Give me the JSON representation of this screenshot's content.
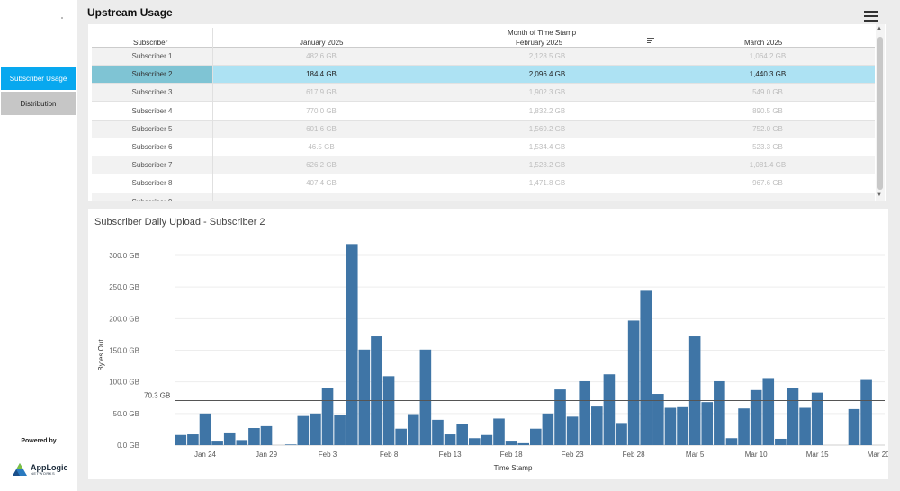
{
  "header": {
    "title": "Upstream Usage"
  },
  "sidebar": {
    "items": [
      {
        "label": "Subscriber Usage",
        "active": true
      },
      {
        "label": "Distribution",
        "active": false
      }
    ],
    "powered_by": "Powered by",
    "logo_name": "AppLogic",
    "logo_sub": "NETWORKS"
  },
  "table": {
    "group_header": "Month of Time Stamp",
    "columns": [
      "Subscriber",
      "January 2025",
      "February 2025",
      "March 2025"
    ],
    "selected_row": 1,
    "rows": [
      {
        "name": "Subscriber 1",
        "jan": "482.6 GB",
        "feb": "2,128.5 GB",
        "mar": "1,064.2 GB"
      },
      {
        "name": "Subscriber 2",
        "jan": "184.4 GB",
        "feb": "2,096.4 GB",
        "mar": "1,440.3 GB"
      },
      {
        "name": "Subscriber 3",
        "jan": "617.9 GB",
        "feb": "1,902.3 GB",
        "mar": "549.0 GB"
      },
      {
        "name": "Subscriber 4",
        "jan": "770.0 GB",
        "feb": "1,832.2 GB",
        "mar": "890.5 GB"
      },
      {
        "name": "Subscriber 5",
        "jan": "601.6 GB",
        "feb": "1,569.2 GB",
        "mar": "752.0 GB"
      },
      {
        "name": "Subscriber 6",
        "jan": "46.5 GB",
        "feb": "1,534.4 GB",
        "mar": "523.3 GB"
      },
      {
        "name": "Subscriber 7",
        "jan": "626.2 GB",
        "feb": "1,528.2 GB",
        "mar": "1,081.4 GB"
      },
      {
        "name": "Subscriber 8",
        "jan": "407.4 GB",
        "feb": "1,471.8 GB",
        "mar": "967.6 GB"
      },
      {
        "name": "Subscriber 9",
        "jan": "",
        "feb": "",
        "mar": ""
      }
    ]
  },
  "chart_data": {
    "type": "bar",
    "title": "Subscriber Daily Upload -  Subscriber 2",
    "xlabel": "Time Stamp",
    "ylabel": "Bytes Out",
    "ylim": [
      0,
      320
    ],
    "y_ticks": [
      0,
      50,
      100,
      150,
      200,
      250,
      300
    ],
    "y_tick_labels": [
      "0.0 GB",
      "50.0 GB",
      "100.0 GB",
      "150.0 GB",
      "200.0 GB",
      "250.0 GB",
      "300.0 GB"
    ],
    "x_ticks": [
      "Jan 24",
      "Jan 29",
      "Feb 3",
      "Feb 8",
      "Feb 13",
      "Feb 18",
      "Feb 23",
      "Feb 28",
      "Mar 5",
      "Mar 10",
      "Mar 15",
      "Mar 20"
    ],
    "reference_line": {
      "value": 70.3,
      "label": "70.3 GB"
    },
    "bar_color": "#3f75a6",
    "categories": [
      "Jan 22",
      "Jan 23",
      "Jan 24",
      "Jan 25",
      "Jan 26",
      "Jan 27",
      "Jan 28",
      "Jan 29",
      "Jan 30",
      "Jan 31",
      "Feb 1",
      "Feb 2",
      "Feb 3",
      "Feb 4",
      "Feb 5",
      "Feb 6",
      "Feb 7",
      "Feb 8",
      "Feb 9",
      "Feb 10",
      "Feb 11",
      "Feb 12",
      "Feb 13",
      "Feb 14",
      "Feb 15",
      "Feb 16",
      "Feb 17",
      "Feb 18",
      "Feb 19",
      "Feb 20",
      "Feb 21",
      "Feb 22",
      "Feb 23",
      "Feb 24",
      "Feb 25",
      "Feb 26",
      "Feb 27",
      "Feb 28",
      "Mar 1",
      "Mar 2",
      "Mar 3",
      "Mar 4",
      "Mar 5",
      "Mar 6",
      "Mar 7",
      "Mar 8",
      "Mar 9",
      "Mar 10",
      "Mar 11",
      "Mar 12",
      "Mar 13",
      "Mar 14",
      "Mar 15",
      "Mar 16",
      "Mar 17",
      "Mar 18",
      "Mar 19",
      "Mar 20"
    ],
    "values": [
      16,
      17,
      50,
      7,
      20,
      8,
      27,
      30,
      0,
      1,
      46,
      50,
      91,
      48,
      318,
      151,
      172,
      109,
      26,
      49,
      151,
      40,
      17,
      34,
      11,
      16,
      42,
      7,
      3,
      26,
      50,
      88,
      45,
      101,
      61,
      112,
      35,
      197,
      244,
      81,
      59,
      60,
      172,
      68,
      101,
      11,
      58,
      87,
      106,
      10,
      90,
      59,
      83,
      0,
      0,
      57,
      103,
      0
    ]
  }
}
